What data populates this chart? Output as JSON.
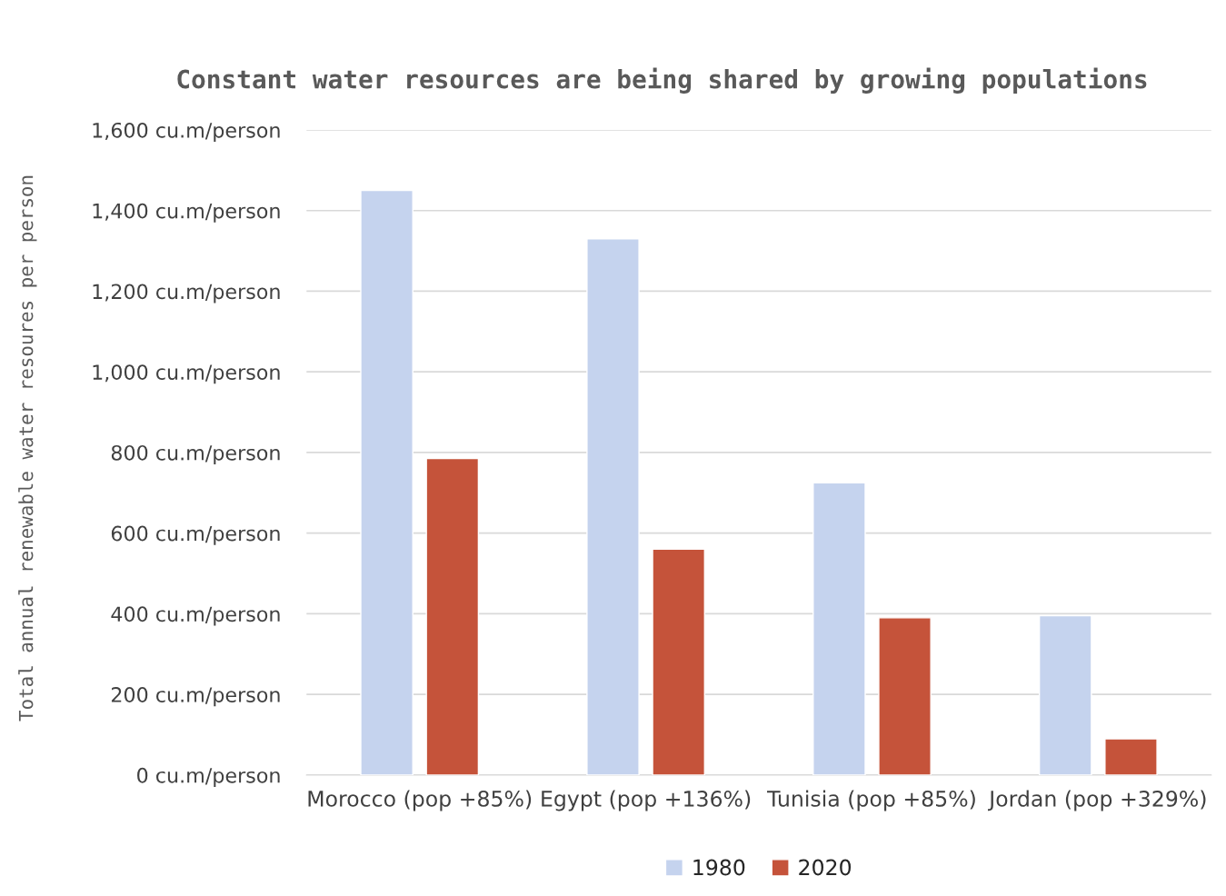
{
  "chart_data": {
    "type": "bar",
    "title": "Constant water resources are being shared by growing populations",
    "ylabel": "Total annual renewable water resoures per person",
    "categories": [
      "Morocco (pop +85%)",
      "Egypt (pop +136%)",
      "Tunisia (pop +85%)",
      "Jordan (pop +329%)"
    ],
    "series": [
      {
        "name": "1980",
        "color": "#c5d3ee",
        "values": [
          1450,
          1330,
          725,
          395
        ]
      },
      {
        "name": "2020",
        "color": "#c5533a",
        "values": [
          785,
          560,
          390,
          90
        ]
      }
    ],
    "ylim": [
      0,
      1600
    ],
    "yticks": [
      {
        "value": 0,
        "label": "0 cu.m/person"
      },
      {
        "value": 200,
        "label": "200 cu.m/person"
      },
      {
        "value": 400,
        "label": "400 cu.m/person"
      },
      {
        "value": 600,
        "label": "600 cu.m/person"
      },
      {
        "value": 800,
        "label": "800 cu.m/person"
      },
      {
        "value": 1000,
        "label": "1,000 cu.m/person"
      },
      {
        "value": 1200,
        "label": "1,200 cu.m/person"
      },
      {
        "value": 1400,
        "label": "1,400 cu.m/person"
      },
      {
        "value": 1600,
        "label": "1,600 cu.m/person"
      }
    ],
    "grid": "y",
    "legend": "bottom"
  }
}
